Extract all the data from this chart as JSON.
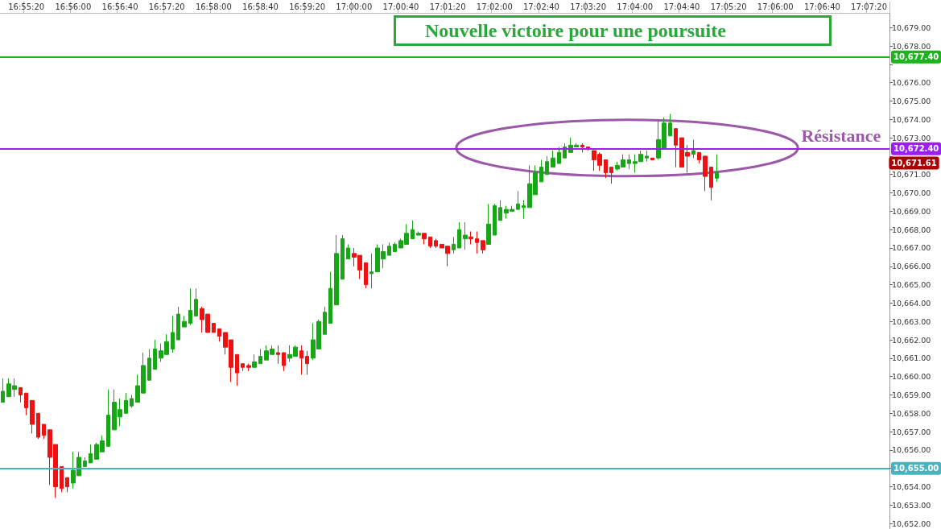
{
  "chart_data": {
    "type": "candlestick",
    "title": "Nouvelle victoire pour une poursuite",
    "categories": [
      null,
      null,
      null,
      null,
      "16:55:20",
      null,
      null,
      null,
      null,
      null,
      null,
      null,
      "16:56:00",
      null,
      null,
      null,
      null,
      null,
      null,
      null,
      "16:56:40",
      null,
      null,
      null,
      null,
      null,
      null,
      null,
      "16:57:20",
      null,
      null,
      null,
      null,
      null,
      null,
      null,
      "16:58:00",
      null,
      null,
      null,
      null,
      null,
      null,
      null,
      "16:58:40",
      null,
      null,
      null,
      null,
      null,
      null,
      null,
      "16:59:20",
      null,
      null,
      null,
      null,
      null,
      null,
      null,
      "17:00:00",
      null,
      null,
      null,
      null,
      null,
      null,
      null,
      "17:00:40",
      null,
      null,
      null,
      null,
      null,
      null,
      null,
      "17:01:20",
      null,
      null,
      null,
      null,
      null,
      null,
      null,
      "17:02:00",
      null,
      null,
      null,
      null,
      null,
      null,
      null,
      "17:02:40",
      null,
      null,
      null,
      null,
      null,
      null,
      null,
      "17:03:20",
      null,
      null,
      null,
      null,
      null,
      null,
      null,
      "17:04:00",
      null,
      null,
      null,
      null,
      null,
      null,
      null,
      "17:04:40",
      null,
      null,
      null,
      null,
      null,
      null,
      null,
      "17:05:20",
      null,
      null,
      null,
      null,
      null,
      null,
      null,
      "17:06:00",
      null,
      null,
      null,
      null,
      null,
      null,
      null,
      "17:06:40",
      null,
      null,
      null,
      null,
      null,
      null,
      null,
      "17:07:20",
      null,
      null,
      null
    ],
    "ohlc": [
      [
        10658.6,
        10659.9,
        10658.6,
        10659.2
      ],
      [
        10658.9,
        10659.9,
        10658.9,
        10659.6
      ],
      [
        10659.3,
        10659.9,
        10658.9,
        10659.5
      ],
      [
        10659.4,
        10659.4,
        10658.6,
        10659.0
      ],
      [
        10659.1,
        10659.1,
        10657.9,
        10658.3
      ],
      [
        10658.7,
        10658.7,
        10656.9,
        10657.4
      ],
      [
        10658.0,
        10658.0,
        10656.6,
        10656.7
      ],
      [
        10657.4,
        10657.4,
        10656.6,
        10656.8
      ],
      [
        10657.1,
        10657.1,
        10654.1,
        10655.6
      ],
      [
        10656.3,
        10656.3,
        10653.4,
        10654.0
      ],
      [
        10655.1,
        10655.1,
        10653.7,
        10653.9
      ],
      [
        10654.5,
        10654.5,
        10653.7,
        10654.0
      ],
      [
        10654.2,
        10655.9,
        10653.9,
        10654.9
      ],
      [
        10654.6,
        10655.9,
        10654.6,
        10655.6
      ],
      [
        10655.1,
        10655.6,
        10655.1,
        10655.4
      ],
      [
        10655.3,
        10656.3,
        10655.3,
        10655.8
      ],
      [
        10655.5,
        10656.4,
        10655.5,
        10656.3
      ],
      [
        10655.9,
        10656.8,
        10655.9,
        10656.5
      ],
      [
        10656.2,
        10659.3,
        10656.2,
        10657.9
      ],
      [
        10657.1,
        10659.3,
        10657.1,
        10658.6
      ],
      [
        10657.8,
        10658.8,
        10657.3,
        10658.2
      ],
      [
        10658.0,
        10659.1,
        10658.0,
        10658.7
      ],
      [
        10658.4,
        10659.0,
        10658.3,
        10658.8
      ],
      [
        10658.6,
        10660.1,
        10658.6,
        10659.5
      ],
      [
        10659.1,
        10661.3,
        10659.1,
        10660.6
      ],
      [
        10659.8,
        10661.5,
        10659.8,
        10661.0
      ],
      [
        10660.4,
        10662.0,
        10660.4,
        10661.5
      ],
      [
        10661.0,
        10661.8,
        10660.8,
        10661.4
      ],
      [
        10661.2,
        10662.3,
        10661.2,
        10661.9
      ],
      [
        10661.5,
        10663.3,
        10661.3,
        10662.4
      ],
      [
        10662.0,
        10663.8,
        10662.0,
        10663.4
      ],
      [
        10662.7,
        10663.3,
        10662.7,
        10663.0
      ],
      [
        10662.9,
        10664.8,
        10662.8,
        10663.6
      ],
      [
        10663.3,
        10664.8,
        10663.3,
        10664.2
      ],
      [
        10663.7,
        10663.8,
        10662.4,
        10663.1
      ],
      [
        10663.4,
        10663.4,
        10662.4,
        10662.4
      ],
      [
        10662.9,
        10662.9,
        10662.4,
        10662.4
      ],
      [
        10662.6,
        10662.6,
        10661.9,
        10662.2
      ],
      [
        10662.4,
        10662.4,
        10661.2,
        10661.6
      ],
      [
        10662.0,
        10662.0,
        10659.7,
        10660.5
      ],
      [
        10661.2,
        10661.2,
        10659.5,
        10660.2
      ],
      [
        10660.7,
        10660.7,
        10660.3,
        10660.5
      ],
      [
        10660.6,
        10660.7,
        10660.3,
        10660.5
      ],
      [
        10660.5,
        10661.2,
        10660.5,
        10660.8
      ],
      [
        10660.7,
        10661.5,
        10660.7,
        10661.1
      ],
      [
        10660.9,
        10661.7,
        10660.9,
        10661.4
      ],
      [
        10661.2,
        10661.7,
        10661.2,
        10661.5
      ],
      [
        10661.3,
        10661.7,
        10660.7,
        10661.2
      ],
      [
        10661.3,
        10661.3,
        10660.3,
        10660.6
      ],
      [
        10661.0,
        10661.7,
        10660.8,
        10661.2
      ],
      [
        10661.1,
        10661.7,
        10661.1,
        10661.6
      ],
      [
        10661.4,
        10661.7,
        10660.1,
        10661.0
      ],
      [
        10661.1,
        10661.4,
        10660.1,
        10660.7
      ],
      [
        10661.0,
        10662.9,
        10660.9,
        10662.0
      ],
      [
        10661.5,
        10663.1,
        10661.5,
        10663.0
      ],
      [
        10662.3,
        10663.8,
        10662.3,
        10663.5
      ],
      [
        10662.9,
        10665.7,
        10662.9,
        10664.8
      ],
      [
        10663.9,
        10667.7,
        10663.9,
        10666.7
      ],
      [
        10665.3,
        10667.7,
        10665.3,
        10667.5
      ],
      [
        10666.4,
        10667.2,
        10666.4,
        10667.0
      ],
      [
        10666.7,
        10667.0,
        10666.0,
        10666.5
      ],
      [
        10666.6,
        10666.6,
        10665.3,
        10665.8
      ],
      [
        10666.2,
        10666.2,
        10664.8,
        10665.0
      ],
      [
        10665.6,
        10666.7,
        10664.8,
        10665.7
      ],
      [
        10665.7,
        10667.2,
        10665.7,
        10667.0
      ],
      [
        10666.4,
        10667.2,
        10665.9,
        10666.8
      ],
      [
        10666.6,
        10667.3,
        10666.6,
        10667.1
      ],
      [
        10666.8,
        10667.3,
        10666.8,
        10667.2
      ],
      [
        10667.0,
        10667.5,
        10667.0,
        10667.4
      ],
      [
        10667.2,
        10668.3,
        10667.2,
        10667.8
      ],
      [
        10667.5,
        10668.5,
        10667.5,
        10668.0
      ],
      [
        10667.7,
        10667.9,
        10667.7,
        10667.8
      ],
      [
        10667.8,
        10667.8,
        10667.2,
        10667.5
      ],
      [
        10667.6,
        10667.6,
        10667.0,
        10667.1
      ],
      [
        10667.4,
        10667.5,
        10667.0,
        10667.1
      ],
      [
        10667.2,
        10667.2,
        10667.0,
        10667.0
      ],
      [
        10667.1,
        10667.1,
        10666.0,
        10666.7
      ],
      [
        10666.9,
        10667.6,
        10666.7,
        10667.2
      ],
      [
        10667.0,
        10668.4,
        10667.0,
        10668.0
      ],
      [
        10667.5,
        10668.4,
        10666.9,
        10667.7
      ],
      [
        10667.6,
        10667.9,
        10667.2,
        10667.5
      ],
      [
        10667.5,
        10667.9,
        10666.7,
        10667.3
      ],
      [
        10667.4,
        10667.4,
        10666.7,
        10666.9
      ],
      [
        10667.2,
        10669.4,
        10667.2,
        10668.3
      ],
      [
        10667.7,
        10669.4,
        10667.7,
        10669.3
      ],
      [
        10668.5,
        10669.6,
        10668.5,
        10669.2
      ],
      [
        10668.9,
        10669.3,
        10668.6,
        10669.1
      ],
      [
        10669.0,
        10669.3,
        10669.0,
        10669.1
      ],
      [
        10669.1,
        10670.1,
        10669.1,
        10669.4
      ],
      [
        10669.2,
        10669.6,
        10668.6,
        10669.3
      ],
      [
        10669.2,
        10671.5,
        10669.2,
        10670.5
      ],
      [
        10669.9,
        10671.5,
        10669.9,
        10671.1
      ],
      [
        10670.6,
        10671.8,
        10670.6,
        10671.4
      ],
      [
        10671.0,
        10672.0,
        10671.0,
        10671.7
      ],
      [
        10671.4,
        10672.3,
        10671.4,
        10671.9
      ],
      [
        10671.6,
        10672.5,
        10671.6,
        10672.2
      ],
      [
        10671.9,
        10672.7,
        10671.9,
        10672.5
      ],
      [
        10672.2,
        10673.0,
        10672.2,
        10672.6
      ],
      [
        10672.5,
        10672.7,
        10672.5,
        10672.6
      ],
      [
        10672.6,
        10672.7,
        10672.2,
        10672.5
      ],
      [
        10672.5,
        10672.5,
        10672.3,
        10672.4
      ],
      [
        10672.3,
        10672.3,
        10671.2,
        10671.8
      ],
      [
        10672.1,
        10672.2,
        10671.2,
        10671.5
      ],
      [
        10671.8,
        10671.8,
        10670.8,
        10671.1
      ],
      [
        10671.4,
        10671.4,
        10670.5,
        10671.1
      ],
      [
        10671.3,
        10671.7,
        10671.2,
        10671.5
      ],
      [
        10671.4,
        10672.1,
        10671.4,
        10671.8
      ],
      [
        10671.6,
        10672.1,
        10671.3,
        10671.8
      ],
      [
        10671.6,
        10672.1,
        10671.1,
        10671.7
      ],
      [
        10671.7,
        10672.3,
        10671.7,
        10672.1
      ],
      [
        10671.9,
        10672.3,
        10671.7,
        10672.0
      ],
      [
        10671.9,
        10671.9,
        10671.8,
        10671.8
      ],
      [
        10671.9,
        10674.0,
        10671.8,
        10672.9
      ],
      [
        10672.4,
        10674.1,
        10672.4,
        10673.8
      ],
      [
        10673.1,
        10674.3,
        10673.1,
        10673.8
      ],
      [
        10673.5,
        10673.5,
        10671.4,
        10672.6
      ],
      [
        10673.0,
        10673.0,
        10671.4,
        10671.4
      ],
      [
        10672.2,
        10672.6,
        10671.1,
        10672.0
      ],
      [
        10672.1,
        10672.9,
        10671.9,
        10672.3
      ],
      [
        10672.2,
        10672.2,
        10671.6,
        10671.8
      ],
      [
        10672.0,
        10672.0,
        10670.1,
        10670.9
      ],
      [
        10671.4,
        10671.4,
        10669.6,
        10670.3
      ],
      [
        10670.8,
        10672.1,
        10670.6,
        10671.1
      ],
      null,
      null,
      null,
      null,
      null,
      null,
      null,
      null,
      null,
      null,
      null,
      null,
      null,
      null,
      null,
      null,
      null,
      null,
      null,
      null,
      null,
      null,
      null,
      null,
      null,
      null,
      null,
      null,
      null
    ],
    "colors": [
      "#16a616",
      "#16a616",
      "#16a616",
      "#ee1111",
      "#ee1111",
      "#ee1111",
      "#ee1111",
      "#ee1111",
      "#ee1111",
      "#ee1111",
      "#ee1111",
      "#ee1111",
      "#16a616",
      "#16a616",
      "#16a616",
      "#16a616",
      "#16a616",
      "#16a616",
      "#16a616",
      "#16a616",
      "#16a616",
      "#16a616",
      "#16a616",
      "#16a616",
      "#16a616",
      "#16a616",
      "#16a616",
      "#16a616",
      "#16a616",
      "#16a616",
      "#16a616",
      "#16a616",
      "#16a616",
      "#16a616",
      "#ee1111",
      "#ee1111",
      "#ee1111",
      "#ee1111",
      "#ee1111",
      "#ee1111",
      "#ee1111",
      "#ee1111",
      "#ee1111",
      "#16a616",
      "#16a616",
      "#16a616",
      "#16a616",
      "#ee1111",
      "#ee1111",
      "#16a616",
      "#16a616",
      "#ee1111",
      "#ee1111",
      "#16a616",
      "#16a616",
      "#16a616",
      "#16a616",
      "#16a616",
      "#16a616",
      "#16a616",
      "#ee1111",
      "#ee1111",
      "#ee1111",
      "#16a616",
      "#16a616",
      "#16a616",
      "#16a616",
      "#16a616",
      "#16a616",
      "#16a616",
      "#16a616",
      "#16a616",
      "#ee1111",
      "#ee1111",
      "#ee1111",
      "#ee1111",
      "#ee1111",
      "#16a616",
      "#16a616",
      "#16a616",
      "#ee1111",
      "#ee1111",
      "#ee1111",
      "#16a616",
      "#16a616",
      "#16a616",
      "#16a616",
      "#16a616",
      "#16a616",
      "#16a616",
      "#16a616",
      "#16a616",
      "#16a616",
      "#16a616",
      "#16a616",
      "#16a616",
      "#16a616",
      "#16a616",
      "#16a616",
      "#ee1111",
      "#ee1111",
      "#ee1111",
      "#ee1111",
      "#ee1111",
      "#ee1111",
      "#16a616",
      "#16a616",
      "#16a616",
      "#16a616",
      "#16a616",
      "#16a616",
      "#ee1111",
      "#16a616",
      "#16a616",
      "#16a616",
      "#ee1111",
      "#ee1111",
      "#ee1111",
      "#16a616",
      "#ee1111",
      "#ee1111",
      "#ee1111",
      "#16a616",
      null,
      null,
      null,
      null,
      null,
      null,
      null,
      null,
      null,
      null,
      null,
      null,
      null,
      null,
      null,
      null,
      null,
      null,
      null,
      null,
      null,
      null,
      null,
      null,
      null,
      null,
      null,
      null,
      null
    ],
    "ylim": [
      10651.7,
      10679.8
    ],
    "yticks": [
      {
        "value": 10652,
        "label": "10,652.00"
      },
      {
        "value": 10653,
        "label": "10,653.00"
      },
      {
        "value": 10654,
        "label": "10,654.00"
      },
      {
        "value": 10655,
        "label": null
      },
      {
        "value": 10656,
        "label": "10,656.00"
      },
      {
        "value": 10657,
        "label": "10,657.00"
      },
      {
        "value": 10658,
        "label": "10,658.00"
      },
      {
        "value": 10659,
        "label": "10,659.00"
      },
      {
        "value": 10660,
        "label": "10,660.00"
      },
      {
        "value": 10661,
        "label": "10,661.00"
      },
      {
        "value": 10662,
        "label": "10,662.00"
      },
      {
        "value": 10663,
        "label": "10,663.00"
      },
      {
        "value": 10664,
        "label": "10,664.00"
      },
      {
        "value": 10665,
        "label": "10,665.00"
      },
      {
        "value": 10666,
        "label": "10,666.00"
      },
      {
        "value": 10667,
        "label": "10,667.00"
      },
      {
        "value": 10668,
        "label": "10,668.00"
      },
      {
        "value": 10669,
        "label": "10,669.00"
      },
      {
        "value": 10670,
        "label": "10,670.00"
      },
      {
        "value": 10671,
        "label": "10,671.00"
      },
      {
        "value": 10672,
        "label": null
      },
      {
        "value": 10673,
        "label": "10,673.00"
      },
      {
        "value": 10674,
        "label": "10,674.00"
      },
      {
        "value": 10675,
        "label": "10,675.00"
      },
      {
        "value": 10676,
        "label": "10,676.00"
      },
      {
        "value": 10677,
        "label": null
      },
      {
        "value": 10678,
        "label": "10,678.00"
      },
      {
        "value": 10679,
        "label": "10,679.00"
      }
    ],
    "ref_lines": [
      {
        "axis": "y",
        "value": 10677.4,
        "label": "10,677.40",
        "color": "#1db31d"
      },
      {
        "axis": "y",
        "value": 10672.4,
        "label": "10,672.40",
        "color": "#9b1ff2"
      },
      {
        "axis": "y",
        "value": 10655.0,
        "label": "10,655.00",
        "color": "#4bb3c0"
      }
    ],
    "annotations": [
      {
        "text": "Résistance",
        "y": 10672.4
      },
      "10,671.61"
    ],
    "grid": false
  }
}
